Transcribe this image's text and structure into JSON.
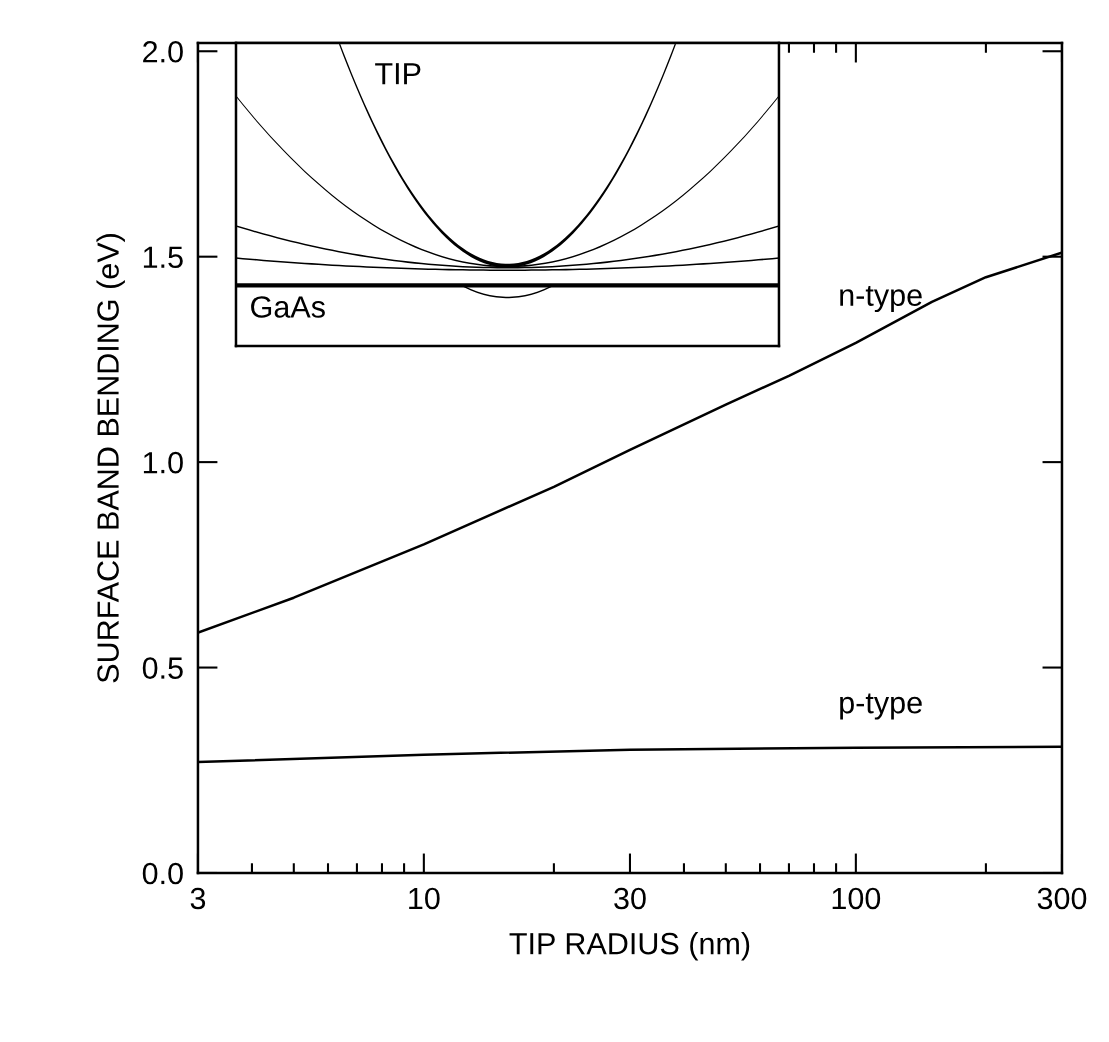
{
  "chart_data": {
    "type": "line",
    "xlabel": "TIP RADIUS (nm)",
    "ylabel": "SURFACE BAND BENDING (eV)",
    "log": "x",
    "xlim": [
      3,
      300
    ],
    "xticks": [
      3,
      10,
      30,
      100,
      300
    ],
    "ylim": [
      0,
      2.02
    ],
    "yticks": [
      {
        "value": 0,
        "label": "0.0"
      },
      0.5,
      {
        "value": 1,
        "label": "1.0"
      },
      1.5,
      {
        "value": 2,
        "label": "2.0"
      }
    ],
    "grid": false,
    "legend": false,
    "marker": "none",
    "line_style": "solid",
    "annotations": [
      "TIP",
      "GaAs"
    ],
    "series": [
      {
        "name": "n-type",
        "color": "#000000",
        "x": [
          3,
          5,
          10,
          20,
          30,
          50,
          70,
          100,
          150,
          200,
          300
        ],
        "values": [
          0.585,
          0.67,
          0.8,
          0.94,
          1.03,
          1.14,
          1.21,
          1.29,
          1.39,
          1.45,
          1.51
        ]
      },
      {
        "name": "p-type",
        "color": "#000000",
        "x": [
          3,
          10,
          30,
          100,
          300
        ],
        "values": [
          0.27,
          0.288,
          0.3,
          0.305,
          0.307
        ]
      }
    ]
  }
}
